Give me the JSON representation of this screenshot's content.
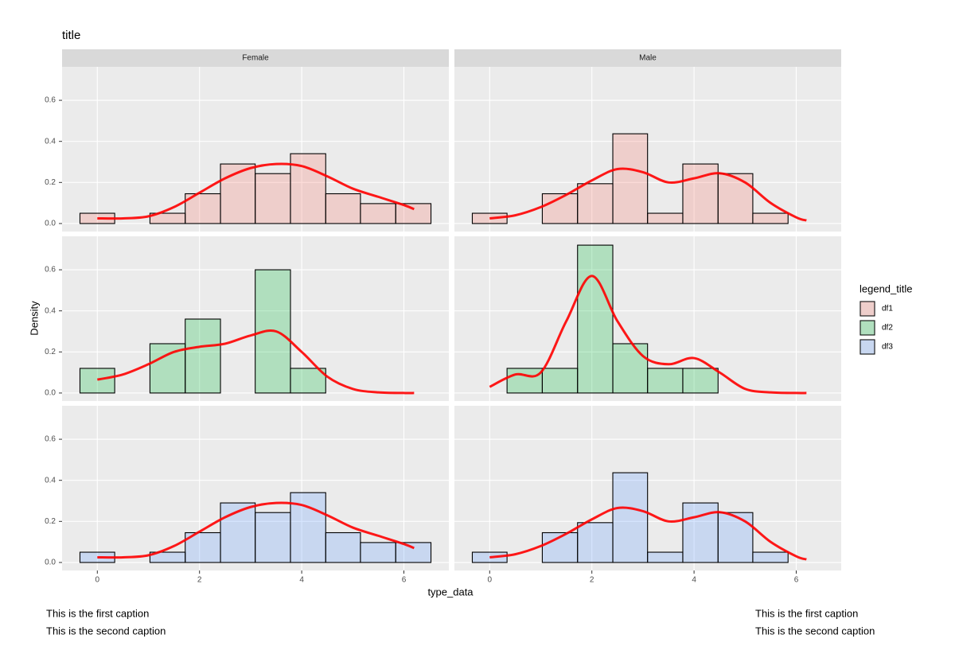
{
  "chart_data": {
    "type": "histogram",
    "title": "title",
    "x_label": "type_data",
    "y_label": "Density",
    "legend_title": "legend_title",
    "facets": [
      "Female",
      "Male"
    ],
    "captions": [
      "This is the first caption",
      "This is the second caption"
    ],
    "xlim": [
      -0.69,
      6.88
    ],
    "xticks": [
      0,
      2,
      4,
      6
    ],
    "ylim": [
      -0.039,
      0.763
    ],
    "yticks": [
      {
        "value": 0,
        "label": "0.0"
      },
      0.2,
      0.4,
      0.6
    ],
    "grid": true,
    "bins": [
      -0.34,
      0.34,
      1.03,
      1.72,
      2.41,
      3.09,
      3.78,
      4.47,
      5.15,
      5.84,
      6.53
    ],
    "curve_x": [
      0,
      0.5,
      1,
      1.5,
      2,
      2.5,
      3,
      3.5,
      4,
      4.5,
      5,
      5.5,
      6,
      6.2
    ],
    "curve_color": "#ff0000",
    "series": [
      {
        "name": "df1",
        "color": "#f8766d",
        "panels": [
          {
            "values": [
              0.05,
              0,
              0.05,
              0.145,
              0.29,
              0.243,
              0.34,
              0.145,
              0.097,
              0.097
            ],
            "density": [
              0.025,
              0.025,
              0.035,
              0.08,
              0.15,
              0.22,
              0.27,
              0.29,
              0.28,
              0.23,
              0.17,
              0.13,
              0.09,
              0.07
            ]
          },
          {
            "values": [
              0.05,
              0,
              0.145,
              0.194,
              0.437,
              0.05,
              0.29,
              0.243,
              0.05,
              0
            ],
            "density": [
              0.025,
              0.04,
              0.08,
              0.14,
              0.21,
              0.265,
              0.25,
              0.2,
              0.22,
              0.245,
              0.2,
              0.1,
              0.03,
              0.015
            ]
          }
        ]
      },
      {
        "name": "df2",
        "color": "#00ba38",
        "panels": [
          {
            "values": [
              0.12,
              0,
              0.24,
              0.36,
              0,
              0.6,
              0.12,
              0,
              0,
              0
            ],
            "density": [
              0.065,
              0.09,
              0.14,
              0.2,
              0.225,
              0.24,
              0.28,
              0.3,
              0.2,
              0.08,
              0.02,
              0.003,
              0,
              0
            ]
          },
          {
            "values": [
              0,
              0.12,
              0.12,
              0.72,
              0.24,
              0.12,
              0.12,
              0,
              0,
              0
            ],
            "density": [
              0.03,
              0.09,
              0.1,
              0.35,
              0.57,
              0.35,
              0.18,
              0.14,
              0.17,
              0.1,
              0.02,
              0.003,
              0,
              0
            ]
          }
        ]
      },
      {
        "name": "df3",
        "color": "#619cff",
        "panels": [
          {
            "values": [
              0.05,
              0,
              0.05,
              0.145,
              0.29,
              0.243,
              0.34,
              0.145,
              0.097,
              0.097
            ],
            "density": [
              0.025,
              0.025,
              0.035,
              0.08,
              0.15,
              0.22,
              0.27,
              0.29,
              0.28,
              0.23,
              0.17,
              0.13,
              0.09,
              0.07
            ]
          },
          {
            "values": [
              0.05,
              0,
              0.145,
              0.194,
              0.437,
              0.05,
              0.29,
              0.243,
              0.05,
              0
            ],
            "density": [
              0.025,
              0.04,
              0.08,
              0.14,
              0.21,
              0.265,
              0.25,
              0.2,
              0.22,
              0.245,
              0.2,
              0.1,
              0.03,
              0.015
            ]
          }
        ]
      }
    ]
  }
}
